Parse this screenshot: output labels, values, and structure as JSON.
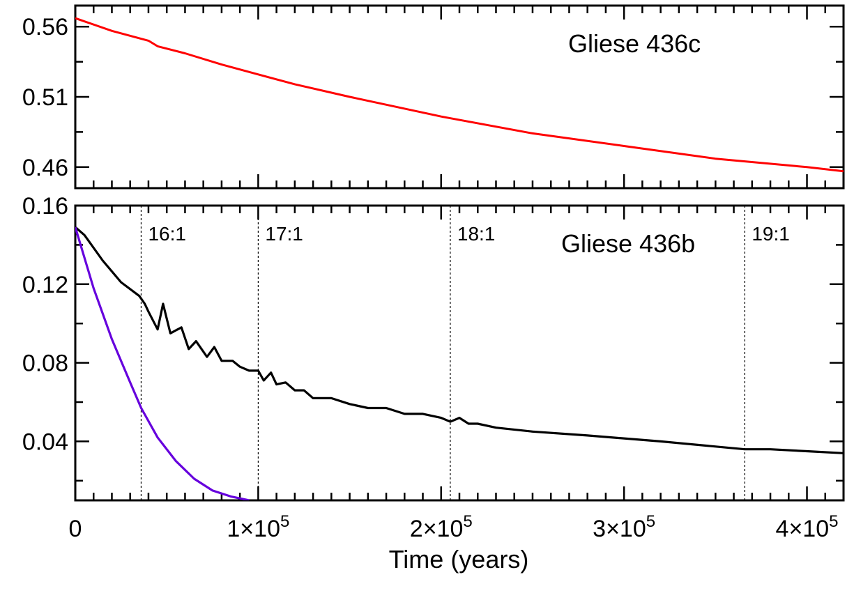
{
  "chart_data": [
    {
      "type": "line",
      "title": "",
      "annotation": "Gliese 436c",
      "xlabel": "",
      "ylabel": "",
      "xlim": [
        0,
        420000
      ],
      "ylim": [
        0.445,
        0.575
      ],
      "yticks": [
        0.46,
        0.51,
        0.56
      ],
      "ytick_labels": [
        "0.46",
        "0.51",
        "0.56"
      ],
      "grid": false,
      "series": [
        {
          "color": "#ff0000",
          "x": [
            0,
            20000,
            40000,
            45000,
            60000,
            80000,
            100000,
            120000,
            150000,
            200000,
            250000,
            300000,
            350000,
            400000,
            420000
          ],
          "y": [
            0.566,
            0.557,
            0.55,
            0.546,
            0.541,
            0.533,
            0.526,
            0.519,
            0.51,
            0.496,
            0.484,
            0.475,
            0.466,
            0.46,
            0.457
          ]
        }
      ]
    },
    {
      "type": "line",
      "title": "",
      "annotation": "Gliese 436b",
      "xlabel": "Time (years)",
      "ylabel": "",
      "xlim": [
        0,
        420000
      ],
      "ylim": [
        0.01,
        0.16
      ],
      "yticks": [
        0.04,
        0.08,
        0.12,
        0.16
      ],
      "ytick_labels": [
        "0.04",
        "0.08",
        "0.12",
        "0.16"
      ],
      "xticks": [
        0,
        100000,
        200000,
        300000,
        400000
      ],
      "xtick_labels": [
        {
          "base": "0",
          "exp": ""
        },
        {
          "base": "1×10",
          "exp": "5"
        },
        {
          "base": "2×10",
          "exp": "5"
        },
        {
          "base": "3×10",
          "exp": "5"
        },
        {
          "base": "4×10",
          "exp": "5"
        }
      ],
      "grid": false,
      "resonances": [
        {
          "label": "16:1",
          "x": 36000
        },
        {
          "label": "17:1",
          "x": 100000
        },
        {
          "label": "18:1",
          "x": 205000
        },
        {
          "label": "19:1",
          "x": 366000
        }
      ],
      "series": [
        {
          "color": "#000000",
          "x": [
            0,
            5000,
            15000,
            25000,
            35000,
            38000,
            40000,
            45000,
            48000,
            52000,
            58000,
            62000,
            66000,
            72000,
            76000,
            80000,
            86000,
            90000,
            95000,
            100000,
            103000,
            107000,
            110000,
            115000,
            120000,
            125000,
            130000,
            140000,
            150000,
            160000,
            170000,
            180000,
            190000,
            200000,
            205000,
            210000,
            215000,
            220000,
            230000,
            250000,
            280000,
            320000,
            366000,
            380000,
            400000,
            420000
          ],
          "y": [
            0.149,
            0.145,
            0.132,
            0.121,
            0.114,
            0.11,
            0.106,
            0.097,
            0.11,
            0.095,
            0.098,
            0.087,
            0.091,
            0.083,
            0.088,
            0.081,
            0.081,
            0.078,
            0.076,
            0.076,
            0.071,
            0.075,
            0.069,
            0.07,
            0.066,
            0.066,
            0.062,
            0.062,
            0.059,
            0.057,
            0.057,
            0.054,
            0.054,
            0.052,
            0.05,
            0.052,
            0.049,
            0.049,
            0.047,
            0.045,
            0.043,
            0.04,
            0.036,
            0.036,
            0.035,
            0.034
          ]
        },
        {
          "color": "#6600dd",
          "x": [
            0,
            10000,
            20000,
            30000,
            36000,
            45000,
            55000,
            65000,
            75000,
            85000,
            95000
          ],
          "y": [
            0.149,
            0.118,
            0.092,
            0.07,
            0.057,
            0.042,
            0.03,
            0.021,
            0.015,
            0.012,
            0.01
          ]
        }
      ]
    }
  ]
}
